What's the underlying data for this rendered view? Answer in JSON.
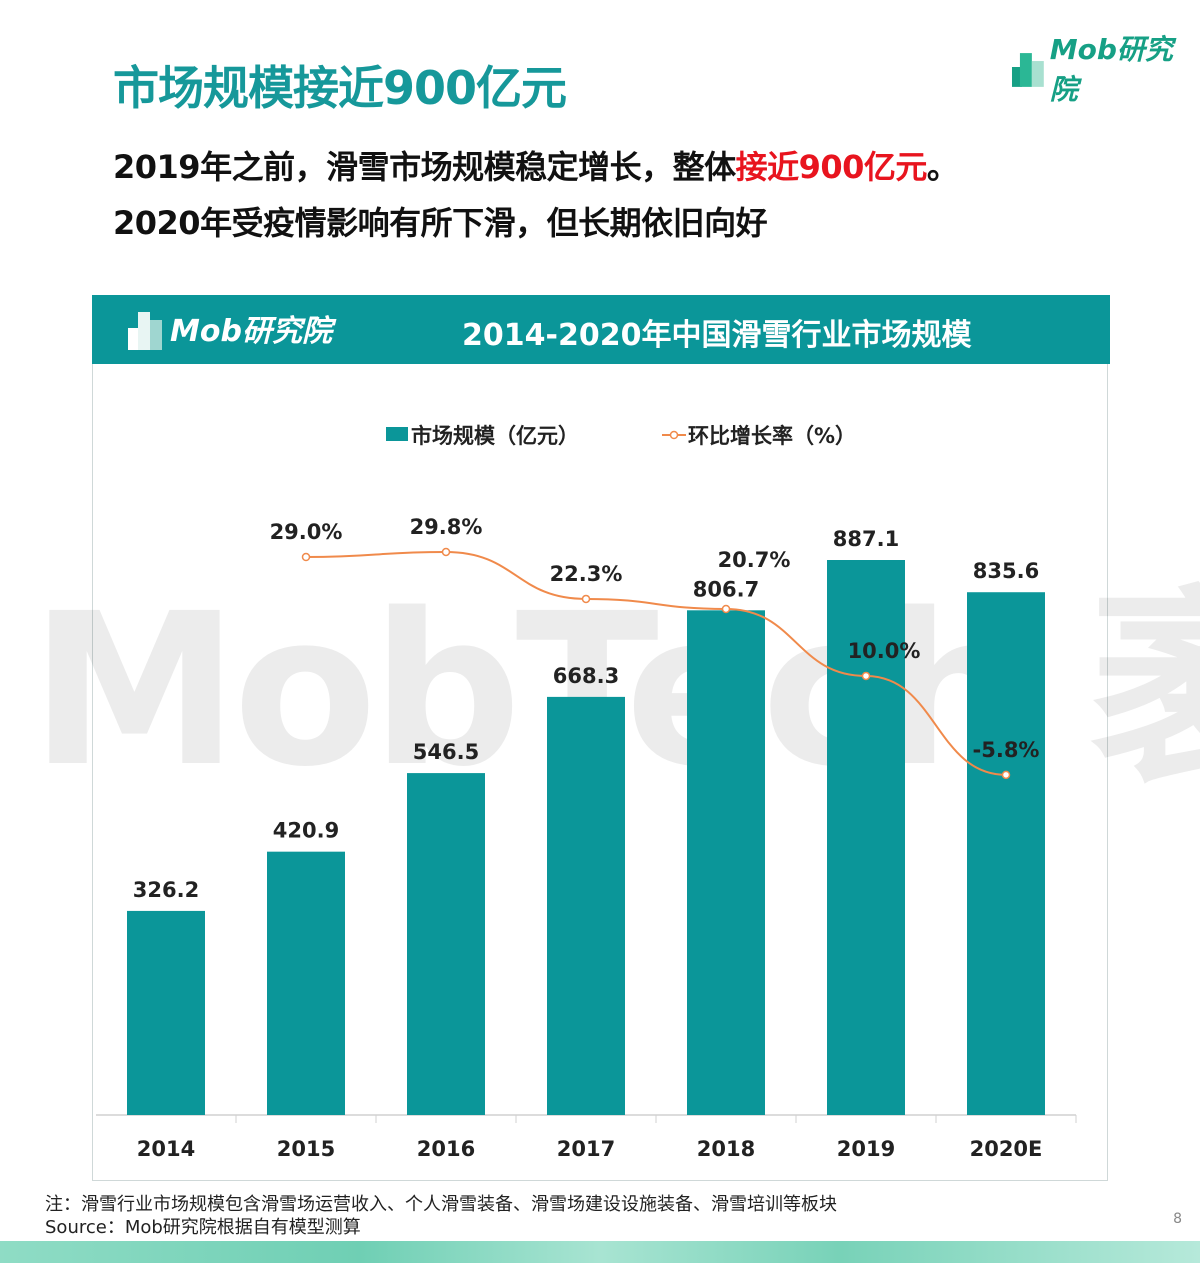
{
  "header": {
    "title": "市场规模接近900亿元",
    "logo": "Mob研究院"
  },
  "subtitle": {
    "line1_a": "2019年之前，滑雪市场规模稳定增长，整体",
    "line1_highlight": "接近900亿元",
    "line1_end": "。",
    "line2": "2020年受疫情影响有所下滑，但长期依旧向好"
  },
  "panel": {
    "logo": "Mob研究院",
    "watermark": "MobTech 袤博"
  },
  "chart_data": {
    "type": "bar+line",
    "title": "2014-2020年中国滑雪行业市场规模",
    "categories": [
      "2014",
      "2015",
      "2016",
      "2017",
      "2018",
      "2019",
      "2020E"
    ],
    "series": [
      {
        "name": "市场规模（亿元）",
        "type": "bar",
        "color": "#0b9699",
        "values": [
          326.2,
          420.9,
          546.5,
          668.3,
          806.7,
          887.1,
          835.6
        ],
        "labels": [
          "326.2",
          "420.9",
          "546.5",
          "668.3",
          "806.7",
          "887.1",
          "835.6"
        ]
      },
      {
        "name": "环比增长率（%）",
        "type": "line",
        "color": "#f08a4b",
        "values": [
          null,
          29.0,
          29.8,
          22.3,
          20.7,
          10.0,
          -5.8
        ],
        "labels": [
          "",
          "29.0%",
          "29.8%",
          "22.3%",
          "20.7%",
          "10.0%",
          "-5.8%"
        ]
      }
    ],
    "legend": "top-center",
    "grid": false
  },
  "footer": {
    "note": "注：滑雪行业市场规模包含滑雪场运营收入、个人滑雪装备、滑雪场建设设施装备、滑雪培训等板块",
    "source": "Source：Mob研究院根据自有模型测算",
    "page": "8"
  }
}
